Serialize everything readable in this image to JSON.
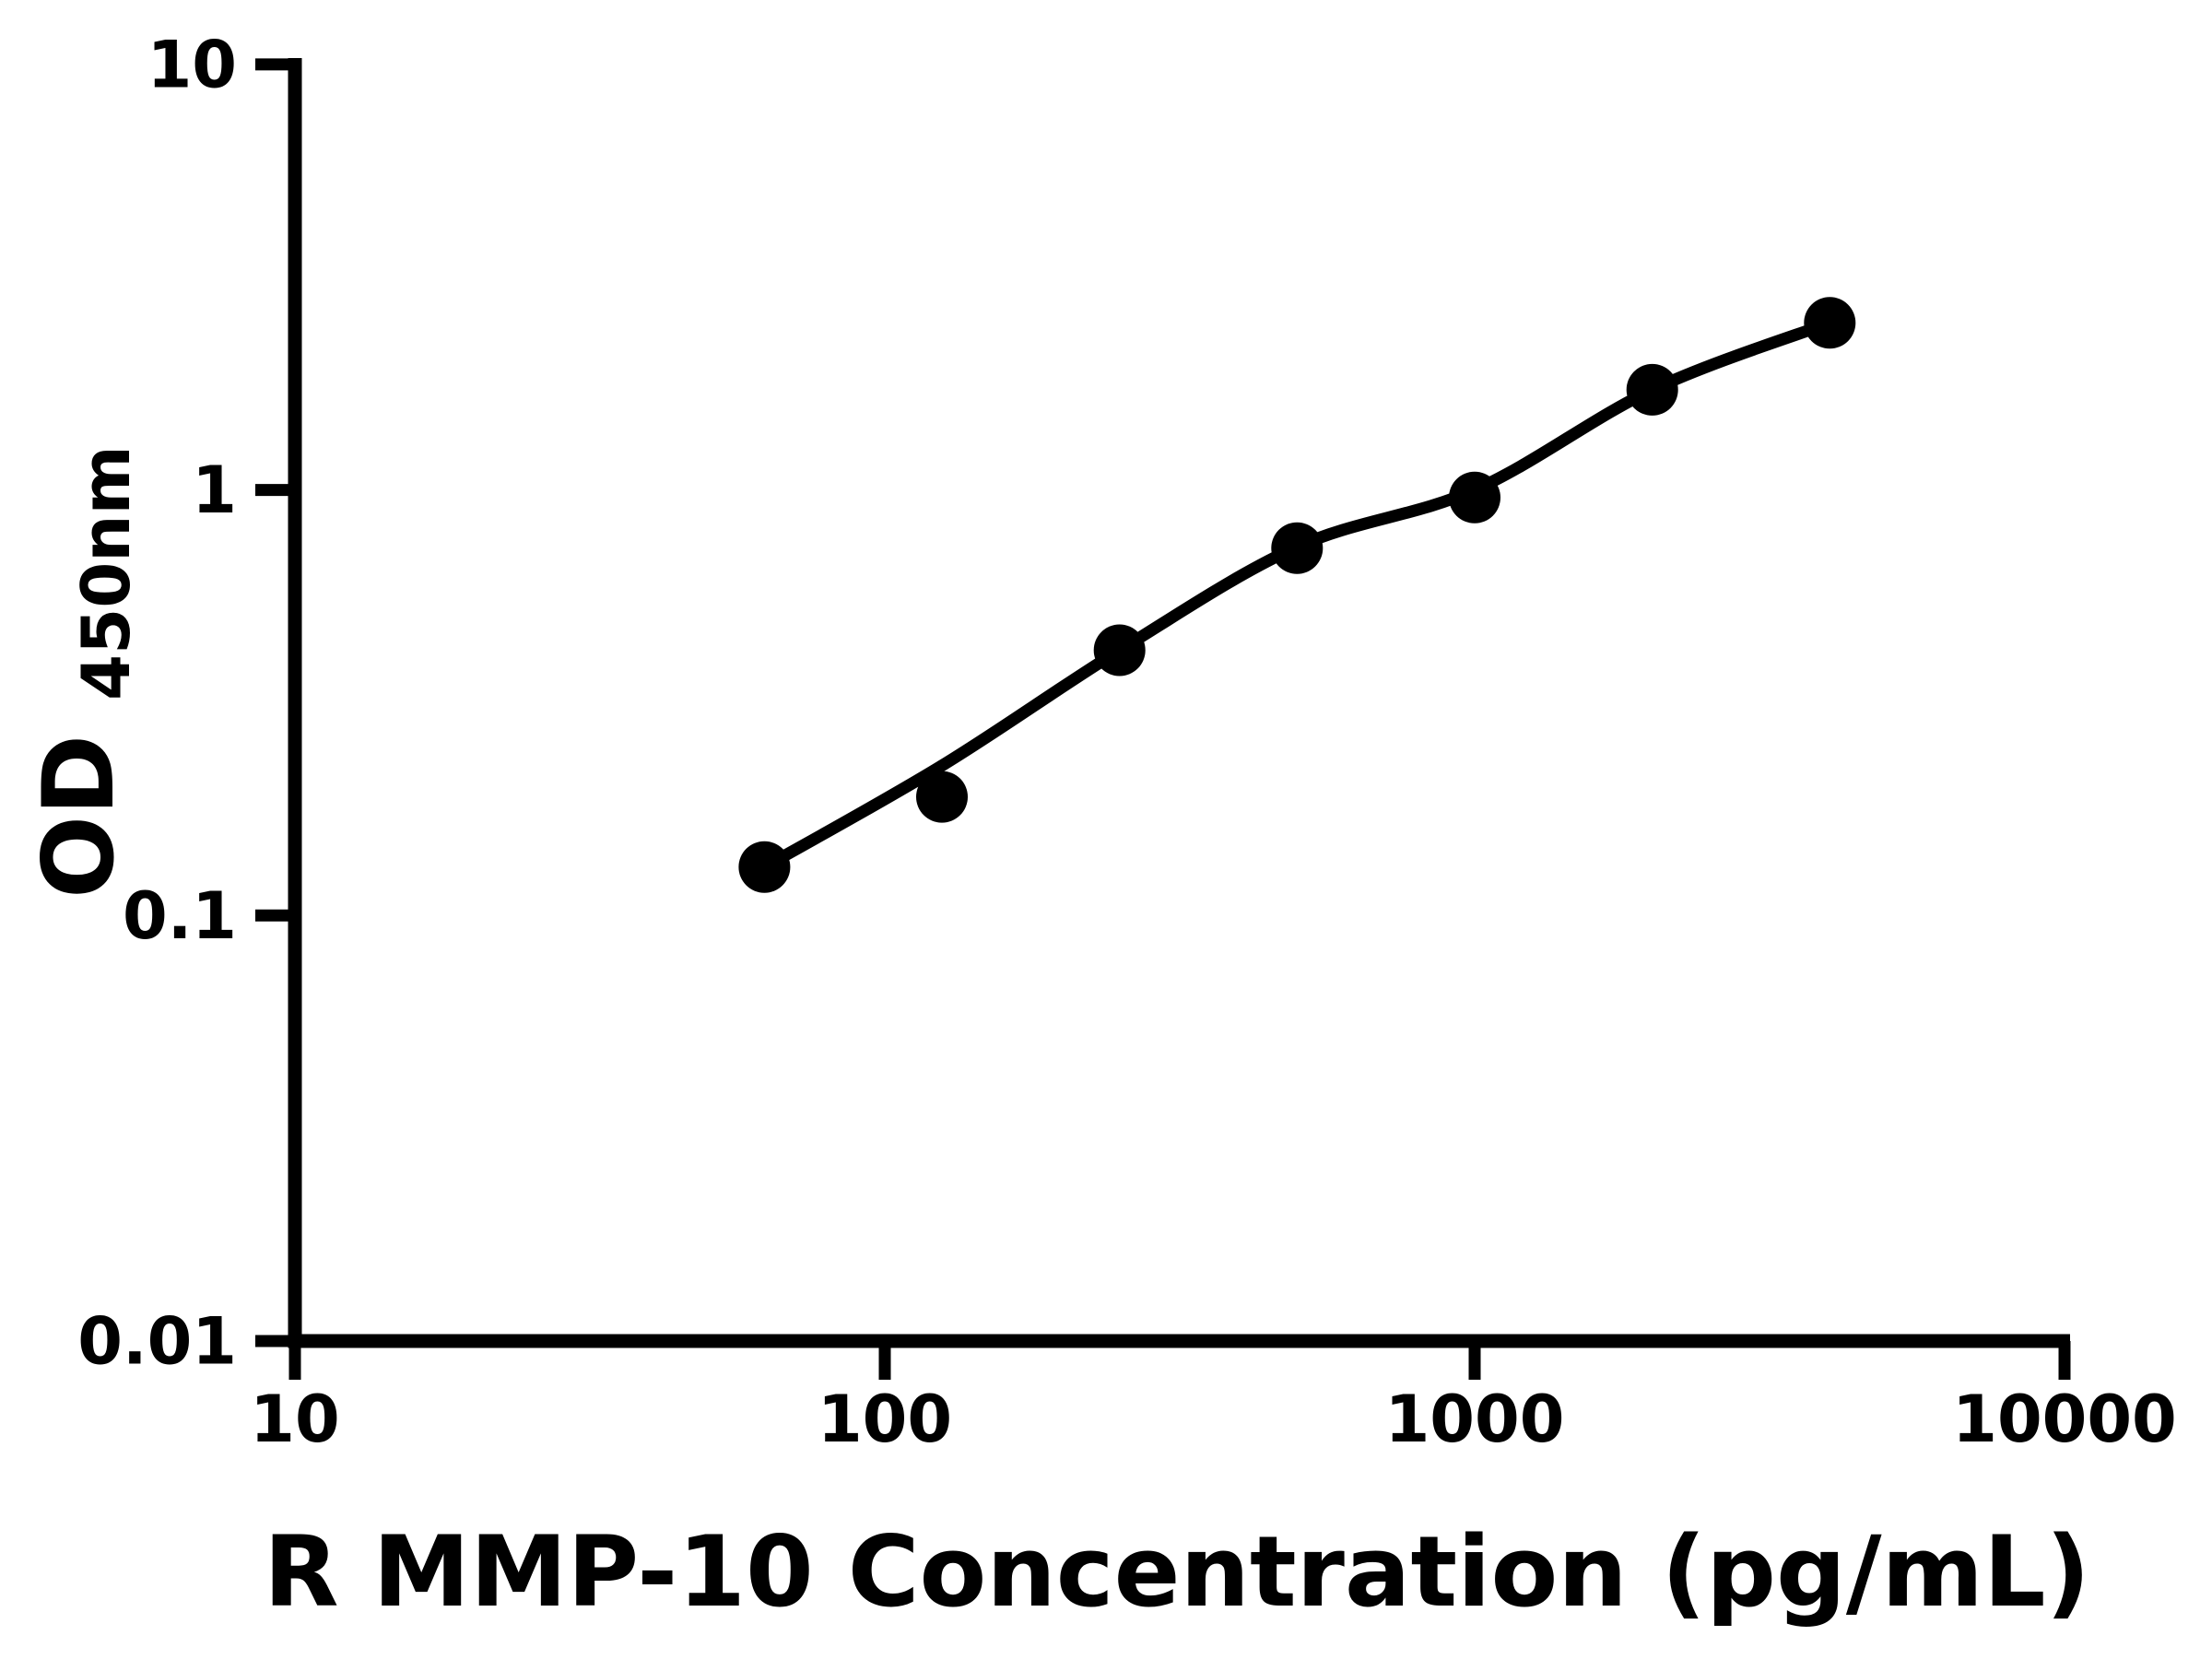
{
  "chart_data": {
    "type": "scatter",
    "title": "",
    "xlabel": "R MMP-10 Concentration (pg/mL)",
    "ylabel": "OD",
    "ylabel_subscript": "450nm",
    "x_scale": "log",
    "y_scale": "log",
    "xlim": [
      10,
      10000
    ],
    "ylim": [
      0.01,
      10
    ],
    "x_ticks": [
      10,
      100,
      1000,
      10000
    ],
    "x_tick_labels": [
      "10",
      "100",
      "1000",
      "10000"
    ],
    "y_ticks": [
      0.01,
      0.1,
      1,
      10
    ],
    "y_tick_labels": [
      "0.01",
      "0.1",
      "1",
      "10"
    ],
    "grid": false,
    "legend": false,
    "colors": {
      "foreground": "#000000",
      "background": "#ffffff"
    },
    "series": [
      {
        "name": "standard-curve-points",
        "marker": "filled-circle",
        "color": "#000000",
        "points": [
          {
            "x": 62.5,
            "y": 0.13
          },
          {
            "x": 125,
            "y": 0.19
          },
          {
            "x": 250,
            "y": 0.42
          },
          {
            "x": 500,
            "y": 0.73
          },
          {
            "x": 1000,
            "y": 0.96
          },
          {
            "x": 2000,
            "y": 1.72
          },
          {
            "x": 4000,
            "y": 2.47
          }
        ]
      }
    ],
    "fit_curve": {
      "type": "smooth-4pl-fit",
      "color": "#000000",
      "points": [
        {
          "x": 62.5,
          "y": 0.13
        },
        {
          "x": 125,
          "y": 0.225
        },
        {
          "x": 250,
          "y": 0.42
        },
        {
          "x": 500,
          "y": 0.735
        },
        {
          "x": 1000,
          "y": 1.0
        },
        {
          "x": 2000,
          "y": 1.72
        },
        {
          "x": 4000,
          "y": 2.47
        }
      ]
    }
  }
}
